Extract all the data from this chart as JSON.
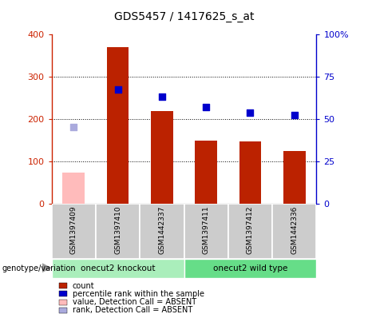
{
  "title": "GDS5457 / 1417625_s_at",
  "samples": [
    "GSM1397409",
    "GSM1397410",
    "GSM1442337",
    "GSM1397411",
    "GSM1397412",
    "GSM1442336"
  ],
  "bar_values": [
    null,
    370,
    220,
    150,
    147,
    125
  ],
  "bar_absent": [
    75,
    null,
    null,
    null,
    null,
    null
  ],
  "rank_values": [
    null,
    270,
    253,
    228,
    215,
    210
  ],
  "rank_absent": [
    182,
    null,
    null,
    null,
    null,
    null
  ],
  "bar_color": "#bb2200",
  "bar_absent_color": "#ffbbbb",
  "rank_color": "#0000cc",
  "rank_absent_color": "#aaaadd",
  "groups": [
    {
      "label": "onecut2 knockout",
      "start": 0,
      "end": 3,
      "color": "#aaeebb"
    },
    {
      "label": "onecut2 wild type",
      "start": 3,
      "end": 6,
      "color": "#66dd88"
    }
  ],
  "ylim_left": [
    0,
    400
  ],
  "yticks_left": [
    0,
    100,
    200,
    300,
    400
  ],
  "ytick_labels_left": [
    "0",
    "100",
    "200",
    "300",
    "400"
  ],
  "yticks_right_vals": [
    0,
    25,
    50,
    75,
    100
  ],
  "ytick_labels_right": [
    "0",
    "25",
    "50",
    "75",
    "100%"
  ],
  "left_axis_color": "#cc2200",
  "right_axis_color": "#0000cc",
  "bg_color": "#cccccc",
  "genotype_label": "genotype/variation",
  "legend": [
    {
      "label": "count",
      "color": "#bb2200"
    },
    {
      "label": "percentile rank within the sample",
      "color": "#0000cc"
    },
    {
      "label": "value, Detection Call = ABSENT",
      "color": "#ffbbbb"
    },
    {
      "label": "rank, Detection Call = ABSENT",
      "color": "#aaaadd"
    }
  ]
}
